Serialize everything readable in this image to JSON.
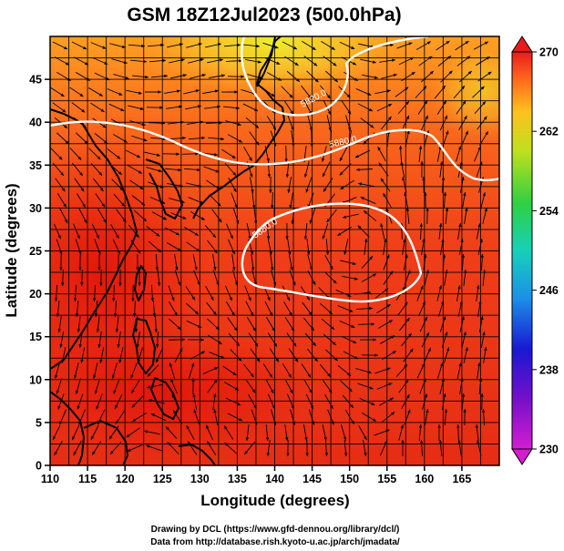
{
  "title": "GSM 18Z12Jul2023 (500.0hPa)",
  "x_axis": {
    "label": "Longitude (degrees)",
    "range": [
      110,
      170
    ],
    "ticks": [
      "110",
      "115",
      "120",
      "125",
      "130",
      "135",
      "140",
      "145",
      "150",
      "155",
      "160",
      "165"
    ]
  },
  "y_axis": {
    "label": "Latitude  (degrees)",
    "range": [
      0,
      50
    ],
    "ticks": [
      "0",
      "5",
      "10",
      "15",
      "20",
      "25",
      "30",
      "35",
      "40",
      "45"
    ]
  },
  "colorbar": {
    "range": [
      230,
      270
    ],
    "ticks": [
      "270",
      "262",
      "254",
      "246",
      "238",
      "230"
    ]
  },
  "contours": [
    {
      "label": "5820.0"
    },
    {
      "label": "5880.0"
    },
    {
      "label": "5880.0"
    }
  ],
  "credits": {
    "line1": "Drawing by DCL (https://www.gfd-dennou.org/library/dcl/)",
    "line2": "Data from http://database.rish.kyoto-u.ac.jp/arch/jmadata/"
  },
  "colors": {
    "warm_max": "#d61010",
    "warm": "#f2461a",
    "mid": "#ff9020",
    "cool": "#d8e020",
    "coast": "#000000",
    "contour": "#ffffff"
  }
}
